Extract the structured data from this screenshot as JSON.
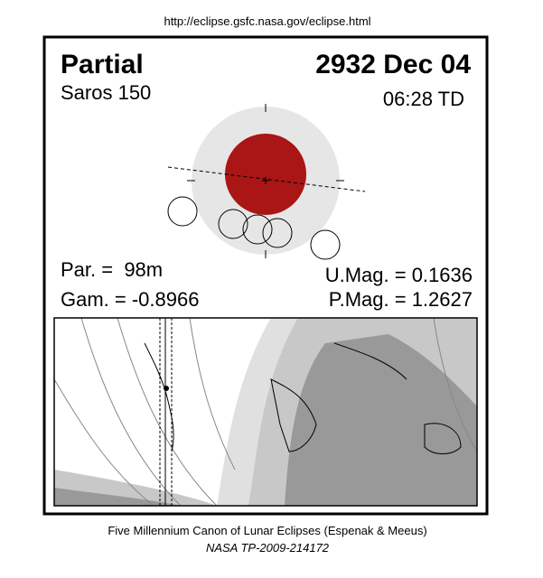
{
  "header": {
    "url": "http://eclipse.gsfc.nasa.gov/eclipse.html"
  },
  "eclipse": {
    "type": "Partial",
    "date": "2932 Dec 04",
    "saros": "Saros 150",
    "time": "06:28 TD",
    "par": "Par. =  98m",
    "gam": "Gam. = -0.8966",
    "umag": "U.Mag. = 0.1636",
    "pmag": "P.Mag. = 1.2627"
  },
  "footer": {
    "line1": "Five Millennium Canon of Lunar Eclipses (Espenak & Meeus)",
    "line2": "NASA TP-2009-214172"
  }
}
